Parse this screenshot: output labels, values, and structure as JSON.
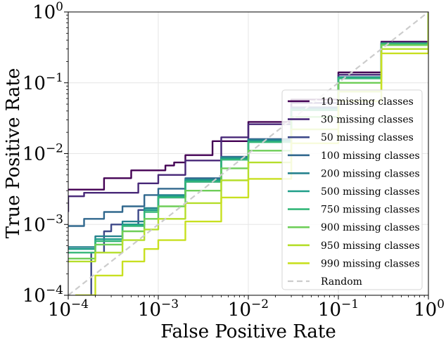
{
  "chart_data": {
    "type": "line",
    "title": "",
    "xlabel": "False Positive Rate",
    "ylabel": "True Positive Rate",
    "xscale": "log",
    "yscale": "log",
    "xlim": [
      0.0001,
      1
    ],
    "ylim": [
      0.0001,
      1
    ],
    "grid": true,
    "legend_position": "lower-right",
    "xticks": [
      {
        "value": 0.0001,
        "base": "10",
        "exp": "−4"
      },
      {
        "value": 0.001,
        "base": "10",
        "exp": "−3"
      },
      {
        "value": 0.01,
        "base": "10",
        "exp": "−2"
      },
      {
        "value": 0.1,
        "base": "10",
        "exp": "−1"
      },
      {
        "value": 1,
        "base": "10",
        "exp": "0"
      }
    ],
    "yticks": [
      {
        "value": 0.0001,
        "base": "10",
        "exp": "−4"
      },
      {
        "value": 0.001,
        "base": "10",
        "exp": "−3"
      },
      {
        "value": 0.01,
        "base": "10",
        "exp": "−2"
      },
      {
        "value": 0.1,
        "base": "10",
        "exp": "−1"
      },
      {
        "value": 1,
        "base": "10",
        "exp": "0"
      }
    ],
    "series": [
      {
        "name": "10 missing classes",
        "color": "#440154",
        "step": true,
        "x": [
          0.0001,
          0.00025,
          0.00025,
          0.0005,
          0.0005,
          0.0012,
          0.0012,
          0.0015,
          0.0015,
          0.002,
          0.002,
          0.004,
          0.01,
          0.03,
          0.1,
          0.3,
          1
        ],
        "y": [
          0.0031,
          0.0031,
          0.0045,
          0.0045,
          0.0058,
          0.0058,
          0.0068,
          0.0068,
          0.0075,
          0.0075,
          0.0095,
          0.015,
          0.028,
          0.058,
          0.14,
          0.38,
          1
        ]
      },
      {
        "name": "30 missing classes",
        "color": "#482878",
        "step": true,
        "x": [
          0.0001,
          0.0001,
          0.00015,
          0.00015,
          0.0003,
          0.0006,
          0.001,
          0.002,
          0.005,
          0.01,
          0.03,
          0.1,
          0.3,
          1
        ],
        "y": [
          0.0015,
          0.0025,
          0.0025,
          0.0028,
          0.0028,
          0.0038,
          0.005,
          0.008,
          0.017,
          0.026,
          0.052,
          0.13,
          0.37,
          1
        ]
      },
      {
        "name": "50 missing classes",
        "color": "#3e4989",
        "step": true,
        "x": [
          0.00018,
          0.00018,
          0.00025,
          0.00025,
          0.0003,
          0.0006,
          0.001,
          0.002,
          0.005,
          0.01,
          0.03,
          0.1,
          0.3,
          1
        ],
        "y": [
          0.0001,
          0.0004,
          0.0004,
          0.0008,
          0.001,
          0.0016,
          0.0024,
          0.004,
          0.009,
          0.016,
          0.045,
          0.12,
          0.36,
          1
        ]
      },
      {
        "name": "100 missing classes",
        "color": "#31688e",
        "step": true,
        "x": [
          0.0001,
          0.00015,
          0.00015,
          0.00025,
          0.00025,
          0.0004,
          0.0007,
          0.001,
          0.002,
          0.005,
          0.01,
          0.03,
          0.1,
          0.3,
          1
        ],
        "y": [
          0.00095,
          0.00095,
          0.0012,
          0.0012,
          0.0015,
          0.0018,
          0.0026,
          0.0032,
          0.0045,
          0.009,
          0.016,
          0.044,
          0.12,
          0.36,
          1
        ]
      },
      {
        "name": "200 missing classes",
        "color": "#26828e",
        "step": true,
        "x": [
          0.0001,
          0.0002,
          0.0004,
          0.0007,
          0.001,
          0.002,
          0.005,
          0.01,
          0.03,
          0.1,
          0.3,
          1
        ],
        "y": [
          0.00048,
          0.00068,
          0.0011,
          0.0017,
          0.0026,
          0.0043,
          0.0088,
          0.0155,
          0.043,
          0.12,
          0.36,
          1
        ]
      },
      {
        "name": "500 missing classes",
        "color": "#1f9e89",
        "step": true,
        "x": [
          0.0001,
          0.0002,
          0.0004,
          0.0007,
          0.001,
          0.002,
          0.005,
          0.01,
          0.03,
          0.1,
          0.3,
          1
        ],
        "y": [
          0.00045,
          0.00062,
          0.001,
          0.0016,
          0.0025,
          0.0042,
          0.0085,
          0.015,
          0.042,
          0.118,
          0.36,
          1
        ]
      },
      {
        "name": "750 missing classes",
        "color": "#35b779",
        "step": true,
        "x": [
          0.0001,
          0.0002,
          0.0004,
          0.0007,
          0.001,
          0.002,
          0.005,
          0.01,
          0.03,
          0.1,
          0.3,
          1
        ],
        "y": [
          0.0004,
          0.00058,
          0.00095,
          0.0015,
          0.0024,
          0.004,
          0.0082,
          0.0145,
          0.041,
          0.115,
          0.36,
          1
        ]
      },
      {
        "name": "900 missing classes",
        "color": "#6ece58",
        "step": true,
        "x": [
          0.0001,
          0.0002,
          0.0004,
          0.0007,
          0.001,
          0.002,
          0.005,
          0.01,
          0.03,
          0.1,
          0.3,
          1
        ],
        "y": [
          0.00033,
          0.00052,
          0.0008,
          0.0012,
          0.0018,
          0.003,
          0.0062,
          0.011,
          0.033,
          0.1,
          0.34,
          1
        ]
      },
      {
        "name": "950 missing classes",
        "color": "#b5de2b",
        "step": true,
        "x": [
          0.0001,
          0.0002,
          0.0004,
          0.0007,
          0.001,
          0.002,
          0.005,
          0.01,
          0.03,
          0.1,
          0.3,
          1
        ],
        "y": [
          0.0003,
          0.0004,
          0.0006,
          0.00085,
          0.0012,
          0.002,
          0.0042,
          0.0075,
          0.022,
          0.075,
          0.3,
          1
        ]
      },
      {
        "name": "990 missing classes",
        "color": "#c8e020",
        "step": true,
        "x": [
          0.00012,
          0.0002,
          0.0004,
          0.0007,
          0.001,
          0.002,
          0.005,
          0.01,
          0.03,
          0.1,
          0.3,
          1
        ],
        "y": [
          0.0001,
          0.00019,
          0.0003,
          0.00045,
          0.0006,
          0.0011,
          0.0024,
          0.0044,
          0.014,
          0.055,
          0.26,
          1
        ]
      },
      {
        "name": "Random",
        "color": "#cccccc",
        "step": false,
        "dash": true,
        "x": [
          0.0001,
          1
        ],
        "y": [
          0.0001,
          1
        ]
      }
    ]
  }
}
